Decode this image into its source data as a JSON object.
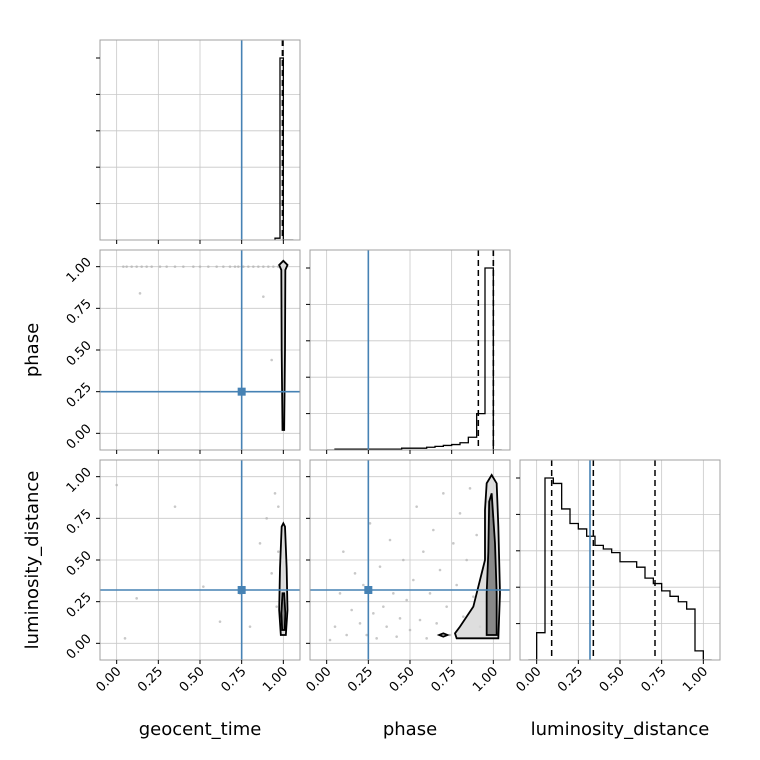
{
  "chart_data": {
    "type": "corner",
    "parameters": [
      "geocent_time",
      "phase",
      "luminosity_distance"
    ],
    "tick_labels": [
      "0.00",
      "0.25",
      "0.50",
      "0.75",
      "1.00"
    ],
    "axis_range": [
      -0.1,
      1.1
    ],
    "grid": true,
    "truths": {
      "geocent_time": 0.75,
      "phase": 0.25,
      "luminosity_distance": 0.32
    },
    "colors": {
      "truth": "#4682b4",
      "line": "#000000",
      "scatter": "#b0b0b0",
      "grid": "#c8c8c8",
      "frame": "#a0a0a0"
    },
    "histograms": {
      "geocent_time": {
        "bin_edges": [
          0.95,
          0.98,
          1.0,
          1.06
        ],
        "counts": [
          0.01,
          1.0,
          0.0
        ],
        "quantiles": [
          0.995,
          0.995,
          0.998
        ]
      },
      "phase": {
        "bin_edges": [
          0.0,
          0.05,
          0.1,
          0.15,
          0.2,
          0.25,
          0.3,
          0.35,
          0.4,
          0.45,
          0.5,
          0.55,
          0.6,
          0.65,
          0.7,
          0.75,
          0.8,
          0.85,
          0.9,
          0.95,
          1.0,
          1.05
        ],
        "counts": [
          0.0,
          0.005,
          0.005,
          0.005,
          0.005,
          0.005,
          0.005,
          0.005,
          0.005,
          0.01,
          0.01,
          0.01,
          0.015,
          0.02,
          0.025,
          0.03,
          0.04,
          0.07,
          0.2,
          1.0,
          0.0
        ],
        "quantiles": [
          0.91,
          1.0,
          1.0
        ]
      },
      "luminosity_distance": {
        "bin_edges": [
          -0.05,
          0.0,
          0.05,
          0.1,
          0.15,
          0.2,
          0.25,
          0.3,
          0.35,
          0.4,
          0.45,
          0.5,
          0.55,
          0.6,
          0.65,
          0.7,
          0.75,
          0.8,
          0.85,
          0.9,
          0.95,
          1.0,
          1.05
        ],
        "counts": [
          0.0,
          0.15,
          1.0,
          0.97,
          0.83,
          0.75,
          0.72,
          0.68,
          0.63,
          0.61,
          0.59,
          0.54,
          0.54,
          0.51,
          0.45,
          0.42,
          0.38,
          0.35,
          0.32,
          0.28,
          0.05,
          0.0
        ],
        "quantiles": [
          0.09,
          0.34,
          0.71
        ]
      }
    },
    "contours": {
      "phase_vs_geocent_time": [
        [
          [
            0.995,
            0.02
          ],
          [
            1.005,
            0.02
          ],
          [
            1.01,
            0.5
          ],
          [
            1.012,
            0.98
          ],
          [
            1.025,
            1.01
          ],
          [
            1.0,
            1.035
          ],
          [
            0.975,
            1.01
          ],
          [
            0.988,
            0.98
          ],
          [
            0.99,
            0.5
          ]
        ]
      ],
      "luminosity_distance_vs_geocent_time": [
        [
          [
            0.985,
            0.05
          ],
          [
            1.015,
            0.05
          ],
          [
            1.025,
            0.2
          ],
          [
            1.02,
            0.45
          ],
          [
            1.01,
            0.7
          ],
          [
            1.0,
            0.72
          ],
          [
            0.99,
            0.7
          ],
          [
            0.98,
            0.45
          ],
          [
            0.975,
            0.2
          ]
        ],
        [
          [
            0.993,
            0.08
          ],
          [
            1.008,
            0.08
          ],
          [
            1.012,
            0.18
          ],
          [
            1.005,
            0.3
          ],
          [
            0.995,
            0.3
          ],
          [
            0.988,
            0.18
          ]
        ]
      ],
      "luminosity_distance_vs_phase": [
        [
          [
            0.78,
            0.03
          ],
          [
            1.03,
            0.03
          ],
          [
            1.04,
            0.3
          ],
          [
            1.03,
            0.7
          ],
          [
            1.02,
            0.96
          ],
          [
            0.99,
            1.01
          ],
          [
            0.96,
            0.96
          ],
          [
            0.95,
            0.8
          ],
          [
            0.95,
            0.5
          ],
          [
            0.92,
            0.38
          ],
          [
            0.88,
            0.22
          ],
          [
            0.8,
            0.1
          ],
          [
            0.77,
            0.06
          ]
        ],
        [
          [
            0.96,
            0.05
          ],
          [
            1.02,
            0.05
          ],
          [
            1.02,
            0.3
          ],
          [
            1.01,
            0.6
          ],
          [
            0.99,
            0.9
          ],
          [
            0.975,
            0.85
          ],
          [
            0.97,
            0.55
          ],
          [
            0.96,
            0.3
          ]
        ],
        [
          [
            0.675,
            0.05
          ],
          [
            0.7,
            0.06
          ],
          [
            0.725,
            0.05
          ],
          [
            0.7,
            0.04
          ]
        ]
      ]
    },
    "scatter": {
      "phase_vs_geocent_time": [
        [
          0.04,
          1.0
        ],
        [
          0.06,
          1.0
        ],
        [
          0.09,
          1.0
        ],
        [
          0.12,
          1.0
        ],
        [
          0.15,
          1.0
        ],
        [
          0.18,
          1.0
        ],
        [
          0.21,
          1.0
        ],
        [
          0.26,
          1.0
        ],
        [
          0.3,
          1.0
        ],
        [
          0.35,
          1.0
        ],
        [
          0.4,
          1.0
        ],
        [
          0.46,
          1.0
        ],
        [
          0.5,
          1.0
        ],
        [
          0.55,
          1.0
        ],
        [
          0.6,
          1.0
        ],
        [
          0.64,
          1.0
        ],
        [
          0.68,
          1.0
        ],
        [
          0.71,
          1.0
        ],
        [
          0.73,
          1.0
        ],
        [
          0.76,
          1.0
        ],
        [
          0.79,
          1.0
        ],
        [
          0.82,
          1.0
        ],
        [
          0.85,
          1.0
        ],
        [
          0.88,
          1.0
        ],
        [
          0.91,
          1.0
        ],
        [
          0.94,
          1.0
        ],
        [
          0.97,
          1.0
        ],
        [
          0.14,
          0.84
        ],
        [
          0.88,
          0.82
        ],
        [
          0.93,
          0.44
        ]
      ],
      "luminosity_distance_vs_geocent_time": [
        [
          0.0,
          0.95
        ],
        [
          0.12,
          0.27
        ],
        [
          0.35,
          0.82
        ],
        [
          0.62,
          0.13
        ],
        [
          0.8,
          0.1
        ],
        [
          0.86,
          0.6
        ],
        [
          0.9,
          0.75
        ],
        [
          0.93,
          0.42
        ],
        [
          0.95,
          0.9
        ],
        [
          0.96,
          0.22
        ],
        [
          0.97,
          0.55
        ],
        [
          0.05,
          0.03
        ],
        [
          0.52,
          0.34
        ],
        [
          0.74,
          0.3
        ],
        [
          0.97,
          0.82
        ]
      ],
      "luminosity_distance_vs_phase": [
        [
          0.02,
          0.02
        ],
        [
          0.05,
          0.1
        ],
        [
          0.08,
          0.3
        ],
        [
          0.1,
          0.55
        ],
        [
          0.12,
          0.05
        ],
        [
          0.15,
          0.2
        ],
        [
          0.17,
          0.42
        ],
        [
          0.2,
          0.12
        ],
        [
          0.22,
          0.35
        ],
        [
          0.24,
          0.05
        ],
        [
          0.26,
          0.72
        ],
        [
          0.28,
          0.18
        ],
        [
          0.3,
          0.03
        ],
        [
          0.32,
          0.46
        ],
        [
          0.34,
          0.22
        ],
        [
          0.36,
          0.1
        ],
        [
          0.38,
          0.62
        ],
        [
          0.4,
          0.3
        ],
        [
          0.42,
          0.04
        ],
        [
          0.44,
          0.15
        ],
        [
          0.46,
          0.5
        ],
        [
          0.48,
          0.26
        ],
        [
          0.5,
          0.08
        ],
        [
          0.52,
          0.38
        ],
        [
          0.54,
          0.82
        ],
        [
          0.56,
          0.14
        ],
        [
          0.58,
          0.55
        ],
        [
          0.6,
          0.03
        ],
        [
          0.62,
          0.3
        ],
        [
          0.64,
          0.68
        ],
        [
          0.66,
          0.12
        ],
        [
          0.68,
          0.44
        ],
        [
          0.7,
          0.9
        ],
        [
          0.72,
          0.22
        ],
        [
          0.74,
          0.05
        ],
        [
          0.76,
          0.6
        ],
        [
          0.78,
          0.35
        ],
        [
          0.8,
          0.78
        ],
        [
          0.82,
          0.16
        ],
        [
          0.84,
          0.5
        ],
        [
          0.86,
          0.93
        ],
        [
          0.88,
          0.28
        ],
        [
          0.9,
          0.65
        ],
        [
          0.92,
          0.1
        ],
        [
          0.94,
          0.45
        ],
        [
          0.96,
          0.85
        ]
      ]
    }
  }
}
